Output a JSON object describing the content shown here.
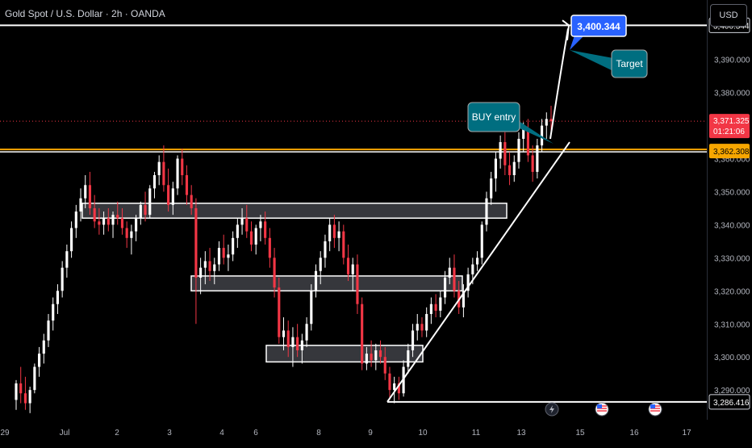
{
  "header": {
    "title": "Gold Spot / U.S. Dollar · 2h · OANDA",
    "currency_button": "USD"
  },
  "colors": {
    "up": "#ffffff",
    "down": "#f23645",
    "price_line": "#f23645",
    "level_line": "#f7a600",
    "trend_line": "#ffffff",
    "callout": "#006e80",
    "target_badge": "#2962ff"
  },
  "chart_data": {
    "type": "candlestick",
    "symbol": "Gold Spot / U.S. Dollar",
    "interval": "2h",
    "source": "OANDA",
    "ylim": [
      3281,
      3408
    ],
    "y_ticks": [
      "3,290.000",
      "3,300.000",
      "3,310.000",
      "3,320.000",
      "3,330.000",
      "3,340.000",
      "3,350.000",
      "3,360.000",
      "3,370.000",
      "3,380.000",
      "3,390.000"
    ],
    "x_ticks": [
      "29",
      "Jul",
      "2",
      "3",
      "4",
      "6",
      "8",
      "9",
      "10",
      "11",
      "13",
      "15",
      "16",
      "17"
    ],
    "price_labels": {
      "current": "3,371.325",
      "countdown": "01:21:06",
      "level": "3,362.308",
      "target": "3,400.344",
      "low": "3,286.416"
    },
    "candles": [
      [
        3287,
        3293,
        3284,
        3292
      ],
      [
        3292,
        3297,
        3286,
        3289
      ],
      [
        3289,
        3294,
        3284,
        3286
      ],
      [
        3286,
        3291,
        3283,
        3290
      ],
      [
        3290,
        3298,
        3289,
        3297
      ],
      [
        3297,
        3303,
        3294,
        3301
      ],
      [
        3301,
        3307,
        3298,
        3305
      ],
      [
        3305,
        3313,
        3303,
        3311
      ],
      [
        3311,
        3318,
        3308,
        3316
      ],
      [
        3316,
        3322,
        3313,
        3320
      ],
      [
        3320,
        3329,
        3318,
        3327
      ],
      [
        3327,
        3334,
        3324,
        3332
      ],
      [
        3332,
        3341,
        3330,
        3339
      ],
      [
        3339,
        3346,
        3336,
        3344
      ],
      [
        3344,
        3351,
        3341,
        3348
      ],
      [
        3348,
        3355,
        3345,
        3352
      ],
      [
        3352,
        3356,
        3343,
        3345
      ],
      [
        3345,
        3349,
        3339,
        3341
      ],
      [
        3341,
        3345,
        3337,
        3340
      ],
      [
        3340,
        3344,
        3337,
        3342
      ],
      [
        3342,
        3345,
        3338,
        3340
      ],
      [
        3340,
        3344,
        3336,
        3343
      ],
      [
        3343,
        3347,
        3340,
        3342
      ],
      [
        3342,
        3345,
        3337,
        3339
      ],
      [
        3339,
        3341,
        3333,
        3336
      ],
      [
        3336,
        3340,
        3331,
        3338
      ],
      [
        3338,
        3343,
        3335,
        3342
      ],
      [
        3342,
        3347,
        3340,
        3346
      ],
      [
        3346,
        3350,
        3341,
        3343
      ],
      [
        3343,
        3352,
        3342,
        3351
      ],
      [
        3351,
        3356,
        3348,
        3355
      ],
      [
        3355,
        3361,
        3352,
        3359
      ],
      [
        3359,
        3364,
        3350,
        3352
      ],
      [
        3352,
        3357,
        3344,
        3346
      ],
      [
        3346,
        3353,
        3343,
        3351
      ],
      [
        3351,
        3361,
        3349,
        3360
      ],
      [
        3360,
        3363,
        3352,
        3355
      ],
      [
        3355,
        3358,
        3346,
        3349
      ],
      [
        3349,
        3352,
        3343,
        3345
      ],
      [
        3345,
        3348,
        3310,
        3324
      ],
      [
        3324,
        3330,
        3319,
        3327
      ],
      [
        3327,
        3332,
        3322,
        3329
      ],
      [
        3329,
        3333,
        3323,
        3326
      ],
      [
        3326,
        3330,
        3322,
        3328
      ],
      [
        3328,
        3335,
        3326,
        3333
      ],
      [
        3333,
        3337,
        3328,
        3330
      ],
      [
        3330,
        3334,
        3326,
        3331
      ],
      [
        3331,
        3338,
        3329,
        3336
      ],
      [
        3336,
        3342,
        3333,
        3340
      ],
      [
        3340,
        3345,
        3337,
        3342
      ],
      [
        3342,
        3346,
        3336,
        3338
      ],
      [
        3338,
        3341,
        3332,
        3334
      ],
      [
        3334,
        3340,
        3331,
        3339
      ],
      [
        3339,
        3343,
        3335,
        3341
      ],
      [
        3341,
        3344,
        3334,
        3336
      ],
      [
        3336,
        3339,
        3327,
        3330
      ],
      [
        3330,
        3333,
        3318,
        3321
      ],
      [
        3321,
        3324,
        3304,
        3306
      ],
      [
        3306,
        3312,
        3302,
        3308
      ],
      [
        3308,
        3311,
        3300,
        3303
      ],
      [
        3303,
        3309,
        3297,
        3306
      ],
      [
        3306,
        3310,
        3300,
        3302
      ],
      [
        3302,
        3307,
        3298,
        3305
      ],
      [
        3305,
        3312,
        3303,
        3310
      ],
      [
        3310,
        3322,
        3308,
        3320
      ],
      [
        3320,
        3328,
        3318,
        3326
      ],
      [
        3326,
        3332,
        3322,
        3330
      ],
      [
        3330,
        3337,
        3327,
        3335
      ],
      [
        3335,
        3342,
        3332,
        3340
      ],
      [
        3340,
        3343,
        3333,
        3336
      ],
      [
        3336,
        3341,
        3332,
        3338
      ],
      [
        3338,
        3340,
        3328,
        3330
      ],
      [
        3330,
        3334,
        3323,
        3325
      ],
      [
        3325,
        3330,
        3320,
        3328
      ],
      [
        3328,
        3331,
        3313,
        3316
      ],
      [
        3316,
        3318,
        3296,
        3298
      ],
      [
        3298,
        3303,
        3296,
        3301
      ],
      [
        3301,
        3305,
        3297,
        3299
      ],
      [
        3299,
        3304,
        3296,
        3302
      ],
      [
        3302,
        3305,
        3298,
        3300
      ],
      [
        3300,
        3303,
        3293,
        3295
      ],
      [
        3295,
        3297,
        3287,
        3290
      ],
      [
        3290,
        3294,
        3286,
        3292
      ],
      [
        3292,
        3294,
        3287,
        3289
      ],
      [
        3289,
        3299,
        3288,
        3297
      ],
      [
        3297,
        3304,
        3295,
        3302
      ],
      [
        3302,
        3310,
        3300,
        3308
      ],
      [
        3308,
        3313,
        3305,
        3310
      ],
      [
        3310,
        3312,
        3306,
        3308
      ],
      [
        3308,
        3315,
        3306,
        3313
      ],
      [
        3313,
        3318,
        3310,
        3316
      ],
      [
        3316,
        3319,
        3312,
        3314
      ],
      [
        3314,
        3320,
        3312,
        3318
      ],
      [
        3318,
        3326,
        3316,
        3324
      ],
      [
        3324,
        3330,
        3322,
        3327
      ],
      [
        3327,
        3331,
        3318,
        3320
      ],
      [
        3320,
        3323,
        3313,
        3315
      ],
      [
        3315,
        3322,
        3312,
        3320
      ],
      [
        3320,
        3327,
        3318,
        3325
      ],
      [
        3325,
        3330,
        3322,
        3328
      ],
      [
        3328,
        3332,
        3326,
        3330
      ],
      [
        3330,
        3341,
        3328,
        3340
      ],
      [
        3340,
        3350,
        3338,
        3348
      ],
      [
        3348,
        3356,
        3346,
        3354
      ],
      [
        3354,
        3362,
        3350,
        3360
      ],
      [
        3360,
        3367,
        3357,
        3365
      ],
      [
        3365,
        3368,
        3355,
        3358
      ],
      [
        3358,
        3362,
        3352,
        3355
      ],
      [
        3355,
        3361,
        3353,
        3359
      ],
      [
        3359,
        3368,
        3357,
        3366
      ],
      [
        3366,
        3371,
        3362,
        3369
      ],
      [
        3369,
        3372,
        3359,
        3361
      ],
      [
        3361,
        3364,
        3353,
        3356
      ],
      [
        3356,
        3366,
        3354,
        3364
      ],
      [
        3364,
        3372,
        3362,
        3370
      ],
      [
        3370,
        3374,
        3366,
        3372
      ],
      [
        3372,
        3376,
        3368,
        3371.3
      ]
    ]
  },
  "annotations": {
    "buy_entry": "BUY entry",
    "target": "Target",
    "target_badge": "3,400.344"
  },
  "zones": [
    {
      "label": "zone-1",
      "low": 3342,
      "high": 3346.5
    },
    {
      "label": "zone-2",
      "low": 3320,
      "high": 3324.5
    },
    {
      "label": "zone-3",
      "low": 3298.5,
      "high": 3303.5
    }
  ],
  "events": [
    "flash-icon",
    "us-flag-icon",
    "us-flag-icon"
  ]
}
